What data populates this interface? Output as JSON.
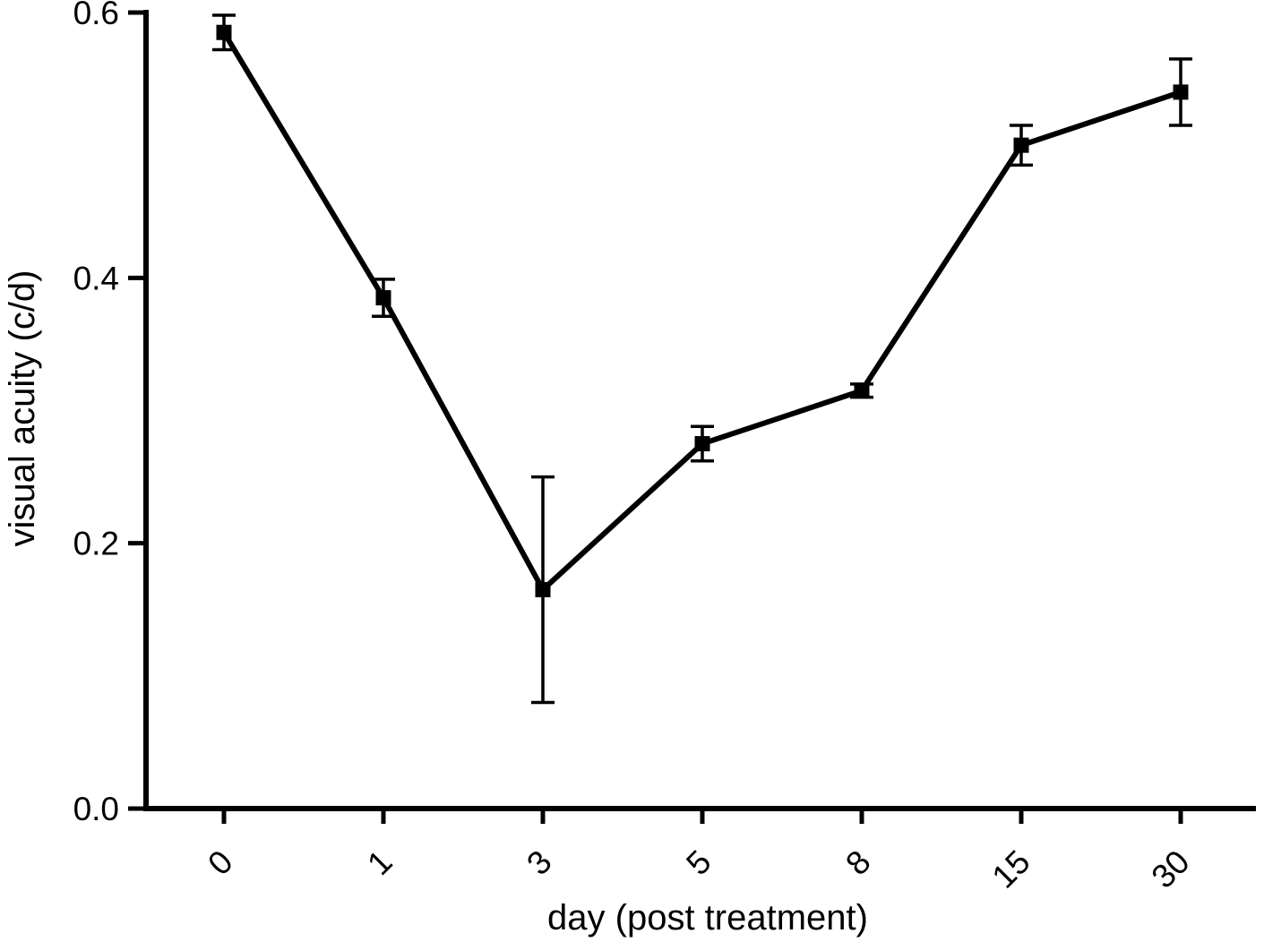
{
  "chart_data": {
    "type": "line",
    "title": "",
    "xlabel": "day (post treatment)",
    "ylabel": "visual acuity (c/d)",
    "categories": [
      "0",
      "1",
      "3",
      "5",
      "8",
      "15",
      "30"
    ],
    "series": [
      {
        "name": "visual acuity",
        "values": [
          0.585,
          0.385,
          0.165,
          0.275,
          0.315,
          0.5,
          0.54
        ],
        "errors": [
          0.013,
          0.014,
          0.085,
          0.013,
          0.005,
          0.015,
          0.025
        ]
      }
    ],
    "ylim": [
      0.0,
      0.6
    ],
    "yticks": [
      0.0,
      0.2,
      0.4,
      0.6
    ],
    "ytick_labels": [
      "0.0",
      "0.2",
      "0.4",
      "0.6"
    ],
    "marker": "filled-square",
    "error_caps": true,
    "line_color": "#000000",
    "marker_color": "#000000",
    "background_color": "#ffffff",
    "grid": false,
    "legend": false
  }
}
